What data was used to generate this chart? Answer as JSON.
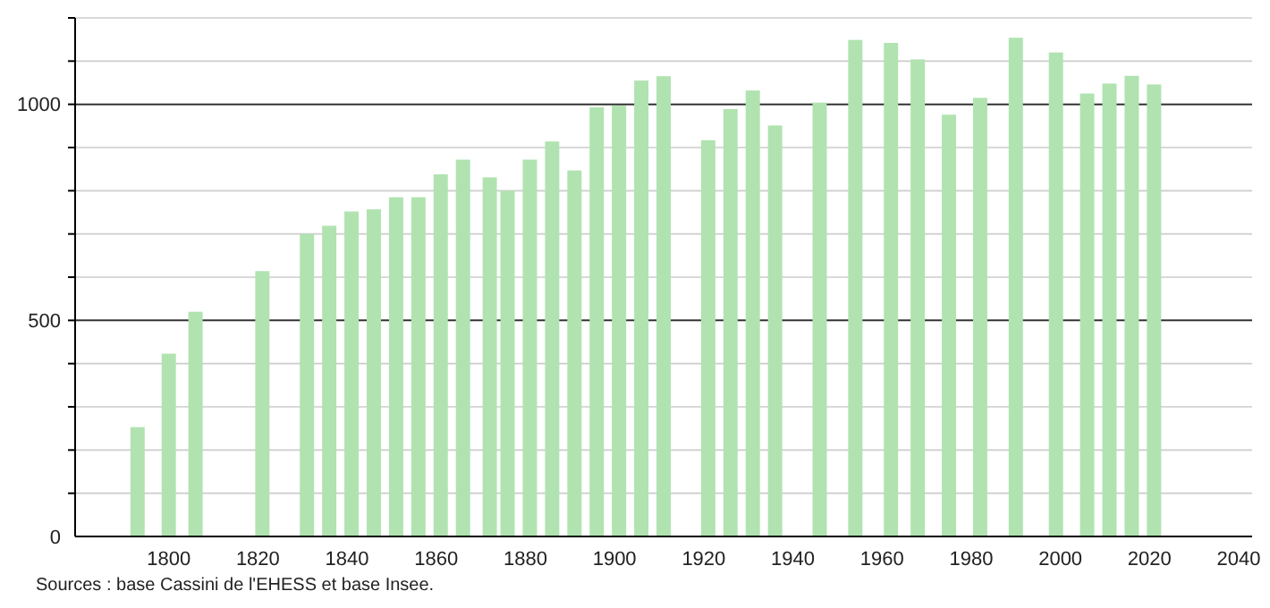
{
  "chart_data": {
    "type": "bar",
    "x": [
      1793,
      1800,
      1806,
      1821,
      1831,
      1836,
      1841,
      1846,
      1851,
      1856,
      1861,
      1866,
      1872,
      1876,
      1881,
      1886,
      1891,
      1896,
      1901,
      1906,
      1911,
      1921,
      1926,
      1931,
      1936,
      1946,
      1954,
      1962,
      1968,
      1975,
      1982,
      1990,
      1999,
      2006,
      2011,
      2016,
      2021
    ],
    "values": [
      253,
      423,
      520,
      614,
      700,
      719,
      752,
      757,
      785,
      785,
      838,
      872,
      831,
      800,
      872,
      914,
      847,
      993,
      997,
      1055,
      1065,
      917,
      989,
      1032,
      951,
      1004,
      1149,
      1142,
      1104,
      976,
      1015,
      1154,
      1120,
      1025,
      1048,
      1066,
      1046
    ],
    "color": "#b0e3b0",
    "xlim": [
      1779,
      2043
    ],
    "xticks": [
      1800,
      1820,
      1840,
      1860,
      1880,
      1900,
      1920,
      1940,
      1960,
      1980,
      2000,
      2020,
      2040
    ],
    "ylim": [
      0,
      1200
    ],
    "yticks": [
      0,
      {
        "value": 100,
        "label": null
      },
      {
        "value": 200,
        "label": null
      },
      {
        "value": 300,
        "label": null
      },
      {
        "value": 400,
        "label": null
      },
      500,
      {
        "value": 600,
        "label": null
      },
      {
        "value": 700,
        "label": null
      },
      {
        "value": 800,
        "label": null
      },
      {
        "value": 900,
        "label": null
      },
      1000,
      {
        "value": 1100,
        "label": null
      },
      {
        "value": 1200,
        "label": null
      }
    ],
    "grid": "y",
    "annotations": [
      "Sources : base Cassini de l'EHESS et base Insee."
    ]
  }
}
